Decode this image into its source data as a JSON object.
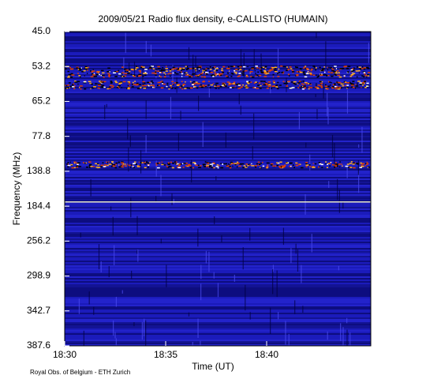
{
  "chart_data": {
    "type": "spectrogram",
    "title": "2009/05/21  Radio flux density, e-CALLISTO (HUMAIN)",
    "y_label": "Frequency (MHz)",
    "x_label": "Time (UT)",
    "y_tick_labels": [
      "45.0",
      "53.2",
      "65.2",
      "77.8",
      "138.8",
      "184.4",
      "256.2",
      "298.9",
      "342.7",
      "387.6"
    ],
    "x_tick_labels": [
      "18:30",
      "18:35",
      "18:40"
    ],
    "credit": "Royal Obs. of Belgium - ETH Zurich"
  }
}
